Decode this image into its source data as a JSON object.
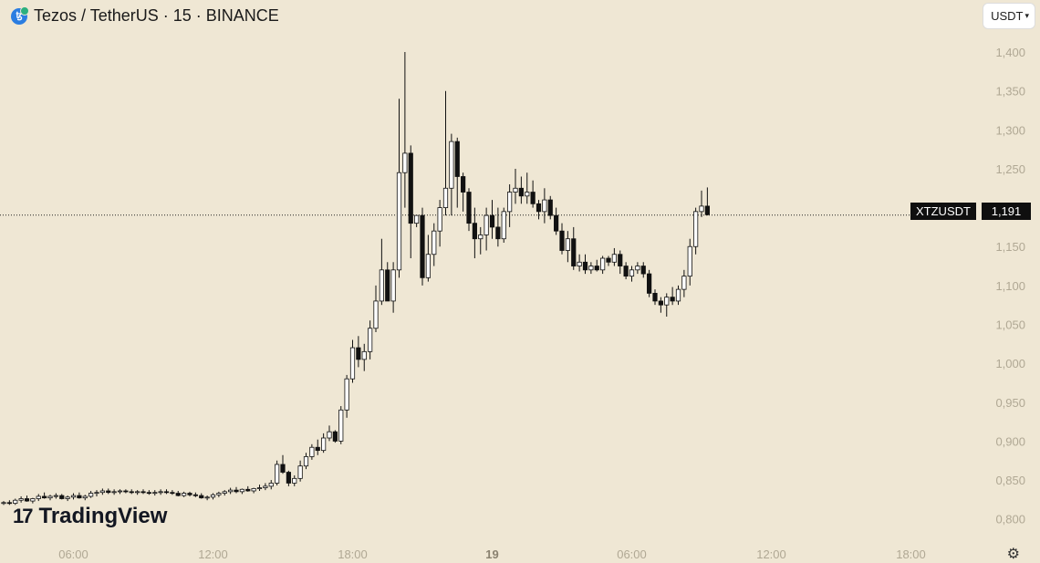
{
  "header": {
    "symbol_title": "Tezos / TetherUS · 15 · BINANCE",
    "icon": "tezos-icon"
  },
  "currency_selector": {
    "label": "USDT",
    "icon": "chevron-down-icon"
  },
  "price_tag": {
    "ticker": "XTZUSDT",
    "price": "1,191"
  },
  "logo": {
    "mark": "17",
    "text": "TradingView"
  },
  "settings": {
    "icon": "settings-gear-icon"
  },
  "colors": {
    "background": "#efe7d4",
    "candle_up": "#ffffff",
    "candle_down": "#111111",
    "wick": "#111111"
  },
  "chart_data": {
    "type": "candlestick",
    "interval": "15",
    "ylim": [
      0.775,
      1.42
    ],
    "yticks": [
      "0,800",
      "0,850",
      "0,900",
      "0,950",
      "1,000",
      "1,050",
      "1,100",
      "1,150",
      "1,200",
      "1,250",
      "1,300",
      "1,350",
      "1,400"
    ],
    "xticks": [
      {
        "label": "06:00",
        "hour": 6
      },
      {
        "label": "12:00",
        "hour": 12
      },
      {
        "label": "18:00",
        "hour": 18
      },
      {
        "label": "19",
        "hour": 24,
        "bold": true
      },
      {
        "label": "06:00",
        "hour": 30
      },
      {
        "label": "12:00",
        "hour": 36
      },
      {
        "label": "18:00",
        "hour": 42
      }
    ],
    "last_price": 1.191,
    "candles": [
      [
        0.82,
        0.823,
        0.818,
        0.821
      ],
      [
        0.821,
        0.824,
        0.818,
        0.82
      ],
      [
        0.82,
        0.826,
        0.818,
        0.824
      ],
      [
        0.824,
        0.829,
        0.821,
        0.826
      ],
      [
        0.826,
        0.83,
        0.822,
        0.823
      ],
      [
        0.823,
        0.827,
        0.82,
        0.826
      ],
      [
        0.826,
        0.832,
        0.823,
        0.829
      ],
      [
        0.829,
        0.834,
        0.826,
        0.827
      ],
      [
        0.827,
        0.831,
        0.824,
        0.829
      ],
      [
        0.829,
        0.833,
        0.826,
        0.83
      ],
      [
        0.83,
        0.832,
        0.825,
        0.826
      ],
      [
        0.826,
        0.83,
        0.823,
        0.828
      ],
      [
        0.828,
        0.833,
        0.825,
        0.83
      ],
      [
        0.83,
        0.834,
        0.826,
        0.827
      ],
      [
        0.827,
        0.831,
        0.824,
        0.829
      ],
      [
        0.829,
        0.836,
        0.827,
        0.833
      ],
      [
        0.833,
        0.837,
        0.829,
        0.834
      ],
      [
        0.834,
        0.839,
        0.831,
        0.836
      ],
      [
        0.836,
        0.839,
        0.832,
        0.834
      ],
      [
        0.834,
        0.838,
        0.831,
        0.835
      ],
      [
        0.835,
        0.838,
        0.832,
        0.836
      ],
      [
        0.836,
        0.838,
        0.833,
        0.835
      ],
      [
        0.835,
        0.838,
        0.832,
        0.834
      ],
      [
        0.834,
        0.837,
        0.831,
        0.835
      ],
      [
        0.835,
        0.838,
        0.832,
        0.834
      ],
      [
        0.834,
        0.837,
        0.831,
        0.833
      ],
      [
        0.833,
        0.837,
        0.83,
        0.834
      ],
      [
        0.834,
        0.838,
        0.831,
        0.835
      ],
      [
        0.835,
        0.838,
        0.832,
        0.834
      ],
      [
        0.834,
        0.837,
        0.831,
        0.833
      ],
      [
        0.833,
        0.836,
        0.829,
        0.83
      ],
      [
        0.83,
        0.835,
        0.828,
        0.833
      ],
      [
        0.833,
        0.835,
        0.829,
        0.831
      ],
      [
        0.831,
        0.834,
        0.828,
        0.83
      ],
      [
        0.83,
        0.833,
        0.826,
        0.827
      ],
      [
        0.827,
        0.83,
        0.824,
        0.828
      ],
      [
        0.828,
        0.833,
        0.825,
        0.831
      ],
      [
        0.831,
        0.835,
        0.828,
        0.833
      ],
      [
        0.833,
        0.837,
        0.83,
        0.835
      ],
      [
        0.835,
        0.84,
        0.832,
        0.837
      ],
      [
        0.837,
        0.841,
        0.833,
        0.835
      ],
      [
        0.835,
        0.839,
        0.832,
        0.838
      ],
      [
        0.838,
        0.842,
        0.835,
        0.836
      ],
      [
        0.836,
        0.84,
        0.833,
        0.839
      ],
      [
        0.839,
        0.844,
        0.836,
        0.84
      ],
      [
        0.84,
        0.846,
        0.837,
        0.842
      ],
      [
        0.842,
        0.85,
        0.838,
        0.846
      ],
      [
        0.846,
        0.875,
        0.843,
        0.87
      ],
      [
        0.87,
        0.882,
        0.858,
        0.86
      ],
      [
        0.86,
        0.862,
        0.842,
        0.846
      ],
      [
        0.846,
        0.856,
        0.842,
        0.852
      ],
      [
        0.852,
        0.875,
        0.848,
        0.868
      ],
      [
        0.868,
        0.885,
        0.864,
        0.88
      ],
      [
        0.88,
        0.896,
        0.876,
        0.892
      ],
      [
        0.892,
        0.902,
        0.882,
        0.888
      ],
      [
        0.888,
        0.91,
        0.885,
        0.904
      ],
      [
        0.904,
        0.92,
        0.9,
        0.912
      ],
      [
        0.912,
        0.914,
        0.898,
        0.9
      ],
      [
        0.9,
        0.945,
        0.896,
        0.94
      ],
      [
        0.94,
        0.985,
        0.93,
        0.98
      ],
      [
        0.98,
        1.03,
        0.975,
        1.02
      ],
      [
        1.02,
        1.035,
        0.995,
        1.005
      ],
      [
        1.005,
        1.025,
        0.99,
        1.015
      ],
      [
        1.015,
        1.055,
        1.005,
        1.045
      ],
      [
        1.045,
        1.1,
        1.04,
        1.08
      ],
      [
        1.08,
        1.16,
        1.075,
        1.12
      ],
      [
        1.12,
        1.13,
        1.08,
        1.08
      ],
      [
        1.08,
        1.13,
        1.065,
        1.12
      ],
      [
        1.12,
        1.34,
        1.11,
        1.245
      ],
      [
        1.245,
        1.4,
        1.2,
        1.27
      ],
      [
        1.27,
        1.28,
        1.135,
        1.18
      ],
      [
        1.18,
        1.19,
        1.175,
        1.19
      ],
      [
        1.19,
        1.2,
        1.1,
        1.11
      ],
      [
        1.11,
        1.165,
        1.105,
        1.14
      ],
      [
        1.14,
        1.18,
        1.125,
        1.17
      ],
      [
        1.17,
        1.21,
        1.15,
        1.2
      ],
      [
        1.2,
        1.35,
        1.19,
        1.225
      ],
      [
        1.225,
        1.295,
        1.19,
        1.285
      ],
      [
        1.285,
        1.29,
        1.2,
        1.24
      ],
      [
        1.24,
        1.245,
        1.195,
        1.22
      ],
      [
        1.22,
        1.225,
        1.17,
        1.18
      ],
      [
        1.18,
        1.2,
        1.135,
        1.16
      ],
      [
        1.16,
        1.175,
        1.14,
        1.165
      ],
      [
        1.165,
        1.2,
        1.145,
        1.19
      ],
      [
        1.19,
        1.21,
        1.16,
        1.175
      ],
      [
        1.175,
        1.2,
        1.15,
        1.16
      ],
      [
        1.16,
        1.2,
        1.155,
        1.195
      ],
      [
        1.195,
        1.23,
        1.175,
        1.22
      ],
      [
        1.22,
        1.25,
        1.205,
        1.225
      ],
      [
        1.225,
        1.24,
        1.205,
        1.215
      ],
      [
        1.215,
        1.245,
        1.205,
        1.22
      ],
      [
        1.22,
        1.235,
        1.2,
        1.205
      ],
      [
        1.205,
        1.21,
        1.185,
        1.195
      ],
      [
        1.195,
        1.225,
        1.18,
        1.21
      ],
      [
        1.21,
        1.215,
        1.185,
        1.19
      ],
      [
        1.19,
        1.2,
        1.165,
        1.17
      ],
      [
        1.17,
        1.18,
        1.14,
        1.145
      ],
      [
        1.145,
        1.17,
        1.13,
        1.16
      ],
      [
        1.16,
        1.175,
        1.12,
        1.125
      ],
      [
        1.125,
        1.14,
        1.118,
        1.13
      ],
      [
        1.13,
        1.14,
        1.115,
        1.12
      ],
      [
        1.12,
        1.13,
        1.115,
        1.125
      ],
      [
        1.125,
        1.133,
        1.118,
        1.12
      ],
      [
        1.12,
        1.138,
        1.115,
        1.135
      ],
      [
        1.135,
        1.138,
        1.125,
        1.13
      ],
      [
        1.13,
        1.148,
        1.125,
        1.14
      ],
      [
        1.14,
        1.145,
        1.115,
        1.125
      ],
      [
        1.125,
        1.13,
        1.108,
        1.112
      ],
      [
        1.112,
        1.125,
        1.105,
        1.12
      ],
      [
        1.12,
        1.13,
        1.115,
        1.125
      ],
      [
        1.125,
        1.13,
        1.11,
        1.115
      ],
      [
        1.115,
        1.12,
        1.085,
        1.09
      ],
      [
        1.09,
        1.095,
        1.075,
        1.08
      ],
      [
        1.08,
        1.085,
        1.065,
        1.075
      ],
      [
        1.075,
        1.09,
        1.06,
        1.085
      ],
      [
        1.085,
        1.098,
        1.075,
        1.08
      ],
      [
        1.08,
        1.1,
        1.075,
        1.095
      ],
      [
        1.095,
        1.12,
        1.085,
        1.112
      ],
      [
        1.112,
        1.16,
        1.1,
        1.15
      ],
      [
        1.15,
        1.2,
        1.14,
        1.195
      ],
      [
        1.195,
        1.222,
        1.188,
        1.202
      ],
      [
        1.202,
        1.226,
        1.19,
        1.191
      ]
    ]
  }
}
